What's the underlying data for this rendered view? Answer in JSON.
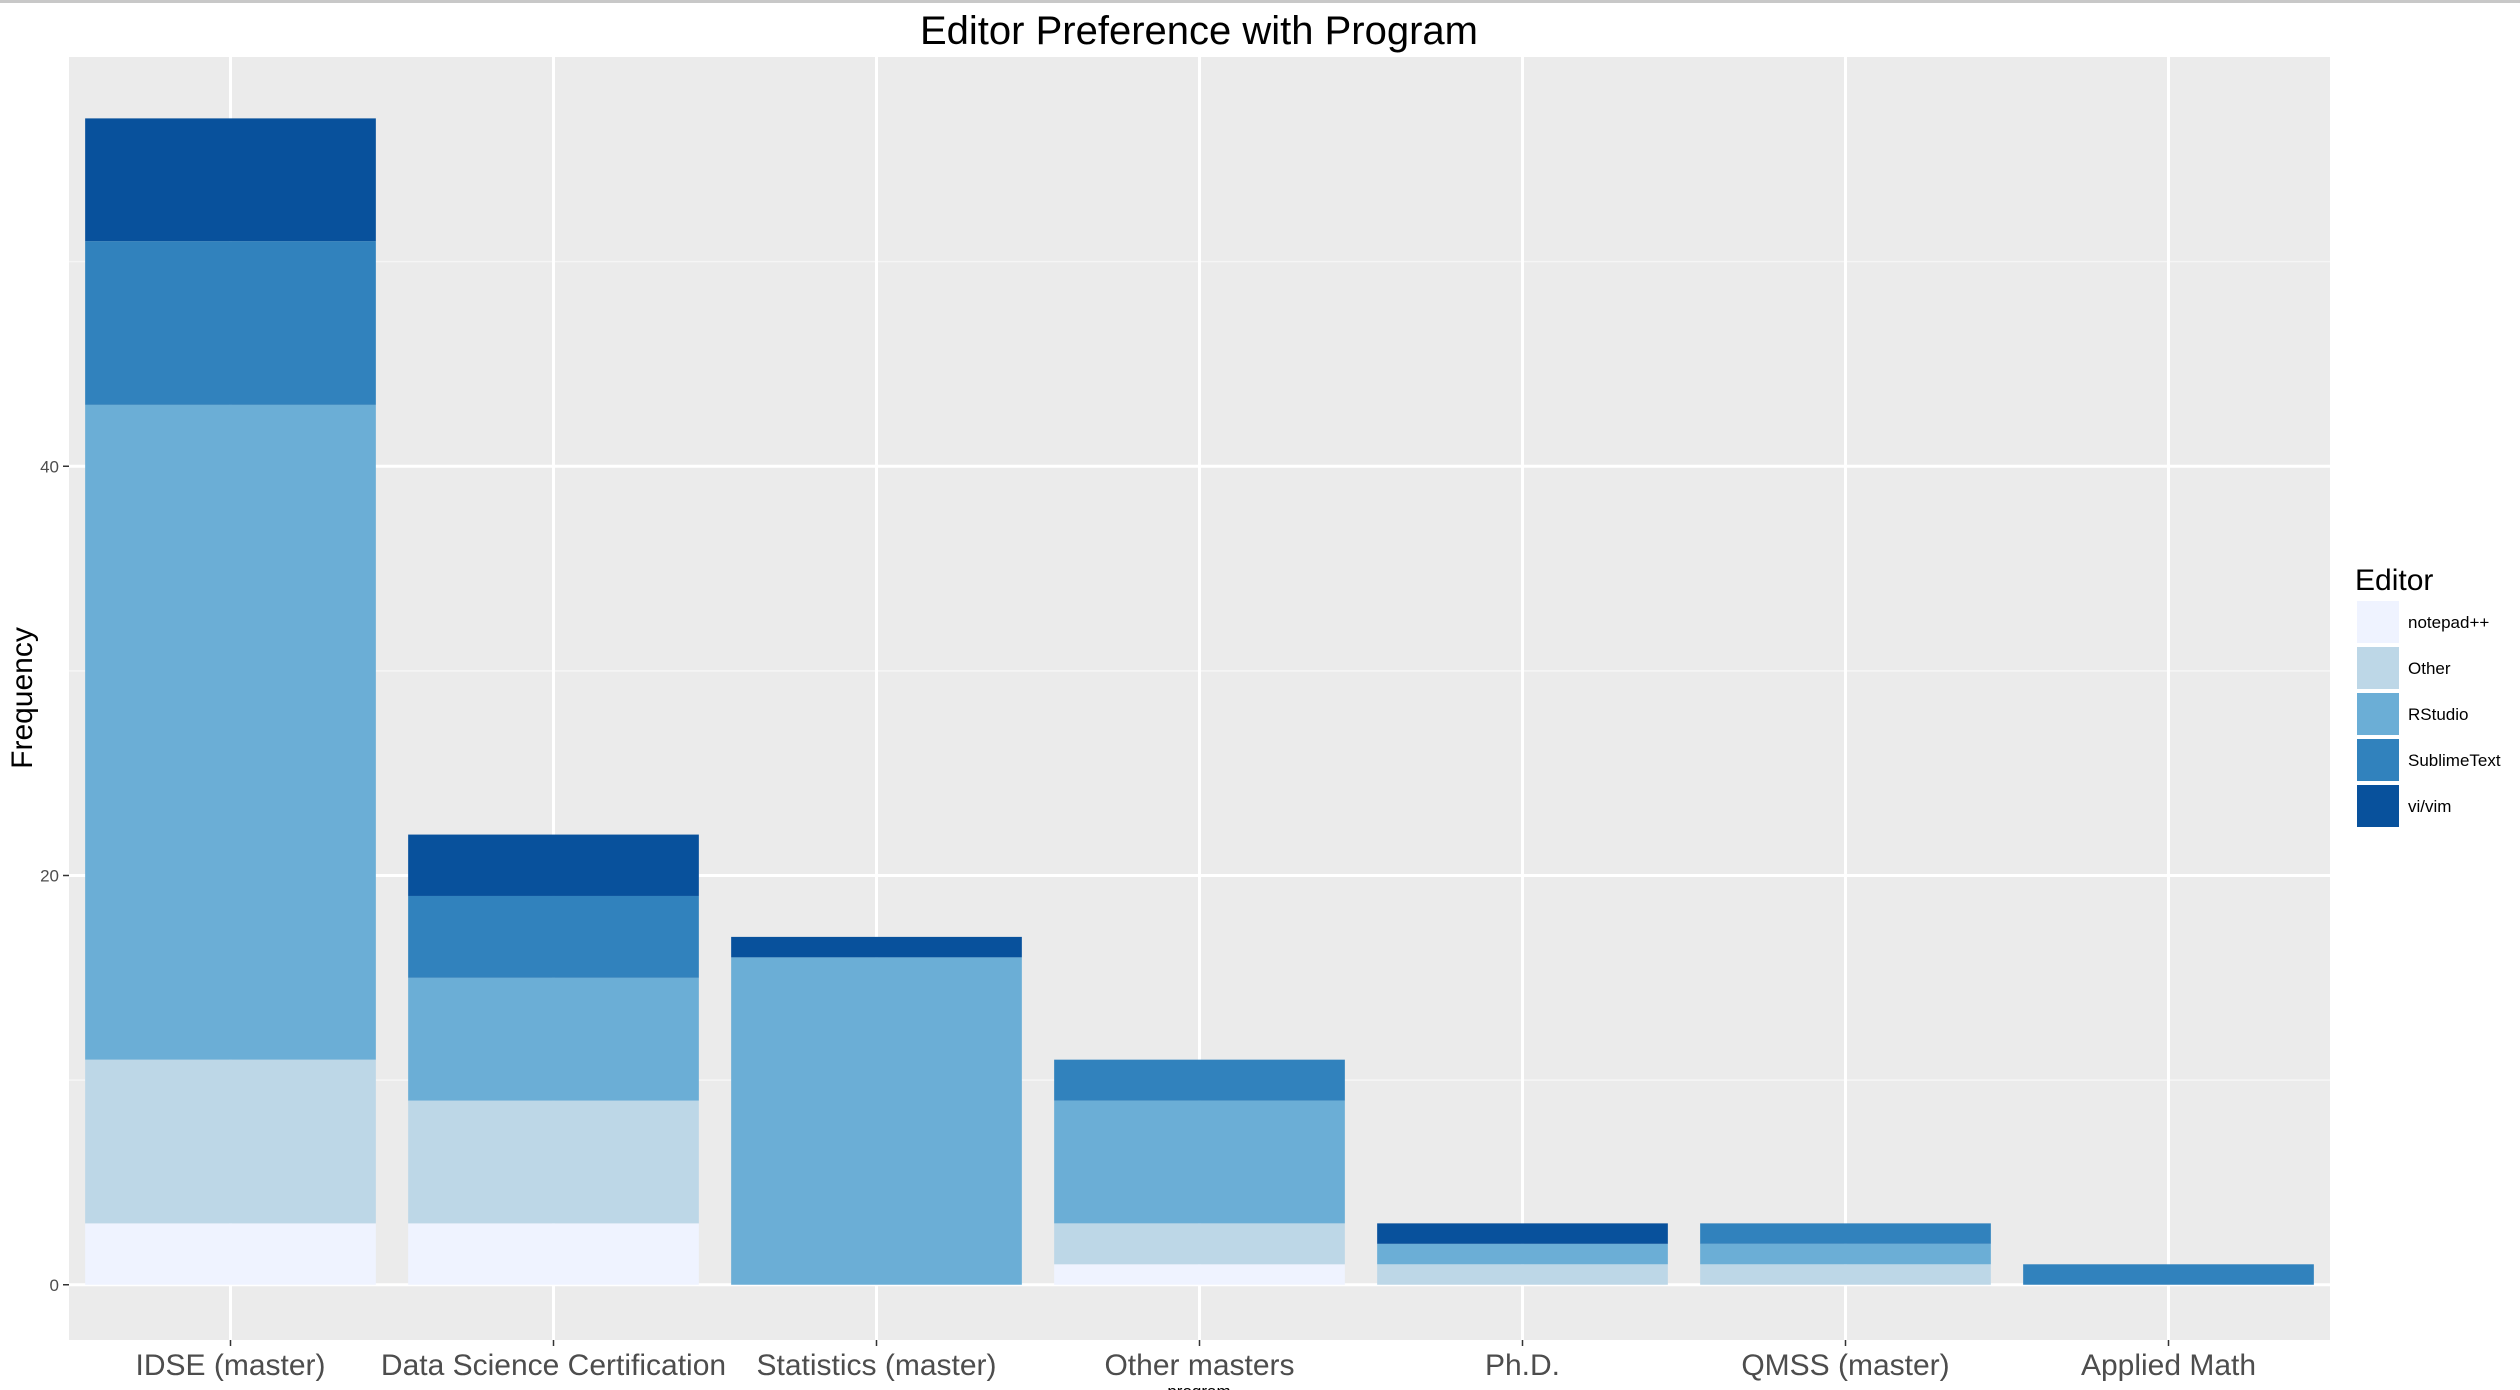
{
  "chart_data": {
    "type": "bar",
    "stacked": true,
    "title": "Editor Preference with Program",
    "xlabel": "program",
    "ylabel": "Frequency",
    "ylim": [
      -2.7,
      60
    ],
    "yticks": [
      0,
      20,
      40
    ],
    "grid": true,
    "legend": {
      "title": "Editor",
      "position": "right"
    },
    "categories": [
      "IDSE (master)",
      "Data Science Certification",
      "Statistics (master)",
      "Other masters",
      "Ph.D.",
      "QMSS (master)",
      "Applied Math"
    ],
    "series": [
      {
        "name": "notepad++",
        "color": "#eff3ff",
        "values": [
          3,
          3,
          0,
          1,
          0,
          0,
          0
        ]
      },
      {
        "name": "Other",
        "color": "#bdd7e7",
        "values": [
          8,
          6,
          0,
          2,
          1,
          1,
          0
        ]
      },
      {
        "name": "RStudio",
        "color": "#6baed6",
        "values": [
          32,
          6,
          16,
          6,
          1,
          1,
          0
        ]
      },
      {
        "name": "SublimeText",
        "color": "#3182bd",
        "values": [
          8,
          4,
          0,
          2,
          0,
          1,
          1
        ]
      },
      {
        "name": "vi/vim",
        "color": "#08519c",
        "values": [
          6,
          3,
          1,
          0,
          1,
          0,
          0
        ]
      }
    ]
  }
}
